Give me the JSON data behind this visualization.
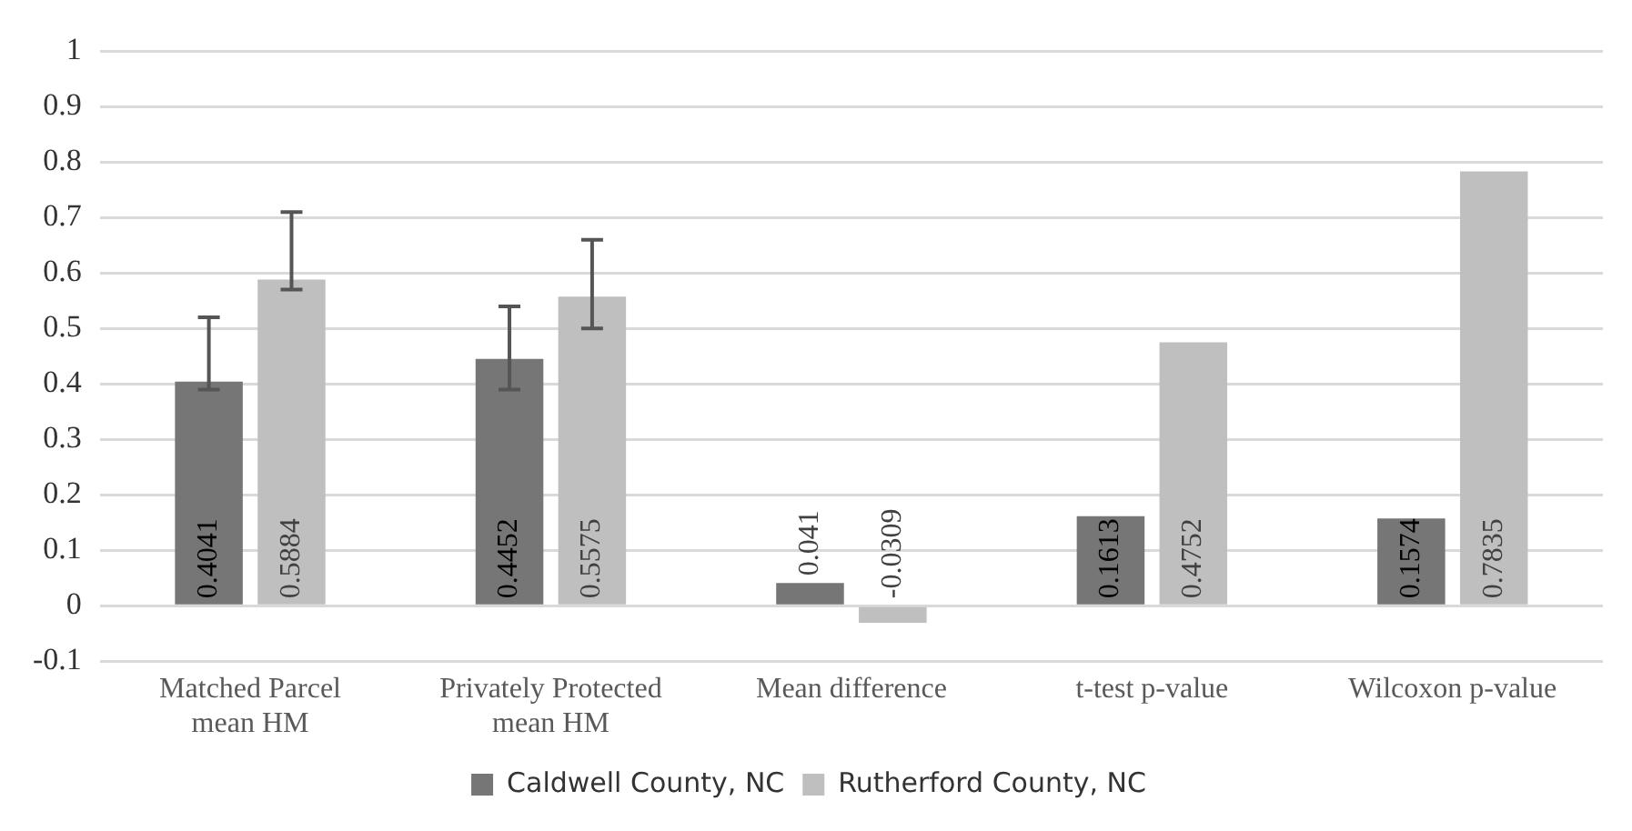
{
  "chart_data": {
    "type": "bar",
    "categories": [
      "Matched Parcel mean HM",
      "Privately Protected mean HM",
      "Mean difference",
      "t-test p-value",
      "Wilcoxon p-value"
    ],
    "series": [
      {
        "name": "Caldwell County, NC",
        "color": "#767676",
        "values": [
          0.4041,
          0.4452,
          0.041,
          0.1613,
          0.1574
        ],
        "errors": [
          [
            0.39,
            0.52
          ],
          [
            0.39,
            0.54
          ],
          null,
          null,
          null
        ]
      },
      {
        "name": "Rutherford County, NC",
        "color": "#bfbfbf",
        "values": [
          0.5884,
          0.5575,
          -0.0309,
          0.4752,
          0.7835
        ],
        "errors": [
          [
            0.57,
            0.71
          ],
          [
            0.5,
            0.66
          ],
          null,
          null,
          null
        ]
      }
    ],
    "ylim": [
      -0.1,
      1
    ],
    "yticks": [
      -0.1,
      0,
      0.1,
      0.2,
      0.3,
      0.4,
      0.5,
      0.6,
      0.7,
      0.8,
      0.9,
      1
    ],
    "grid": "y",
    "legend": "bottom",
    "data_labels": true
  }
}
